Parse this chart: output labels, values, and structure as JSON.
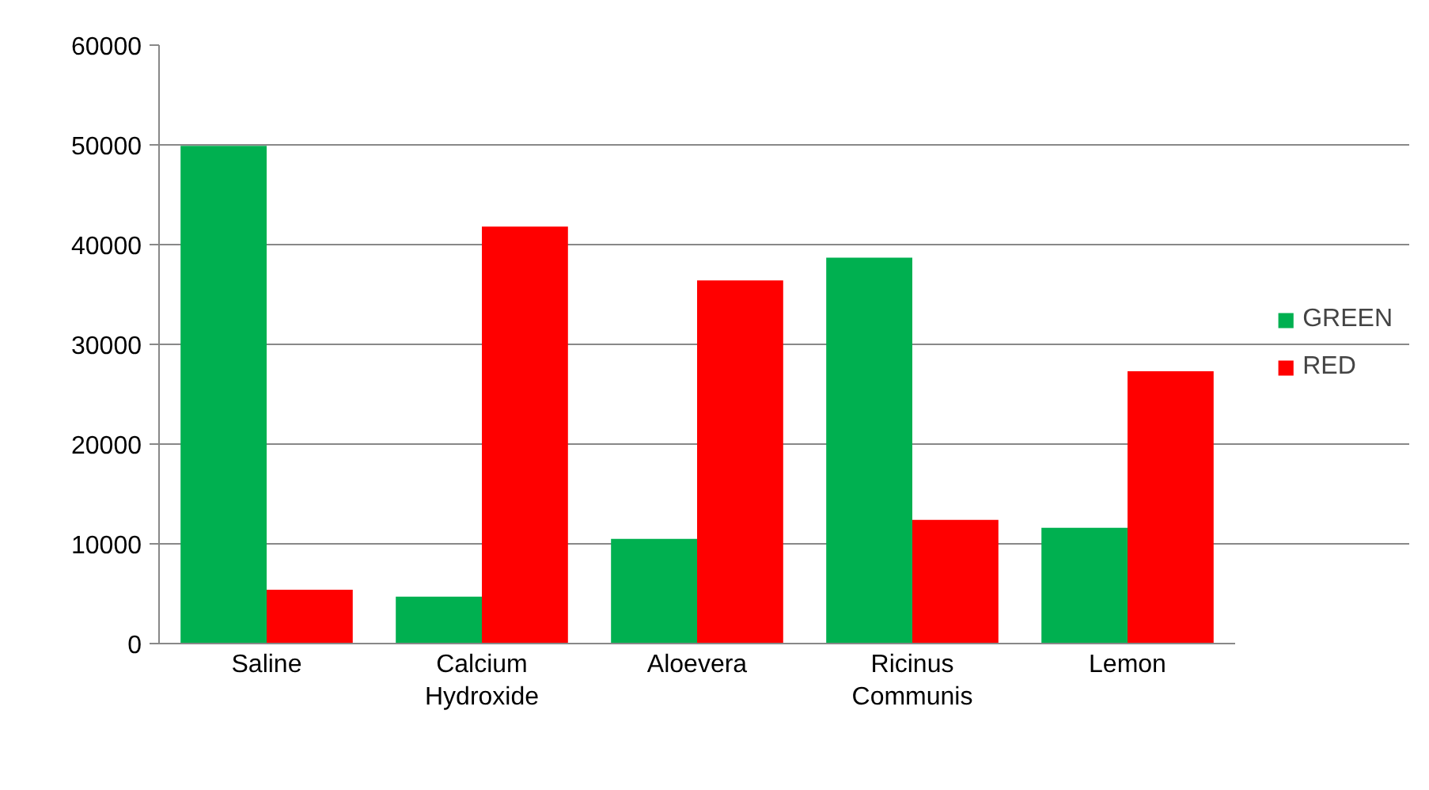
{
  "chart_data": {
    "type": "bar",
    "categories": [
      "Saline",
      "Calcium\nHydroxide",
      "Aloevera",
      "Ricinus\nCommunis",
      "Lemon"
    ],
    "series": [
      {
        "name": "GREEN",
        "color": "#00b050",
        "values": [
          49900,
          4700,
          10500,
          38700,
          11600
        ]
      },
      {
        "name": "RED",
        "color": "#ff0000",
        "values": [
          5400,
          41800,
          36400,
          12400,
          27300
        ]
      }
    ],
    "ylim": [
      0,
      60000
    ],
    "yticks": [
      0,
      10000,
      20000,
      30000,
      40000,
      50000,
      60000
    ],
    "grid": "y",
    "legend": "right"
  }
}
